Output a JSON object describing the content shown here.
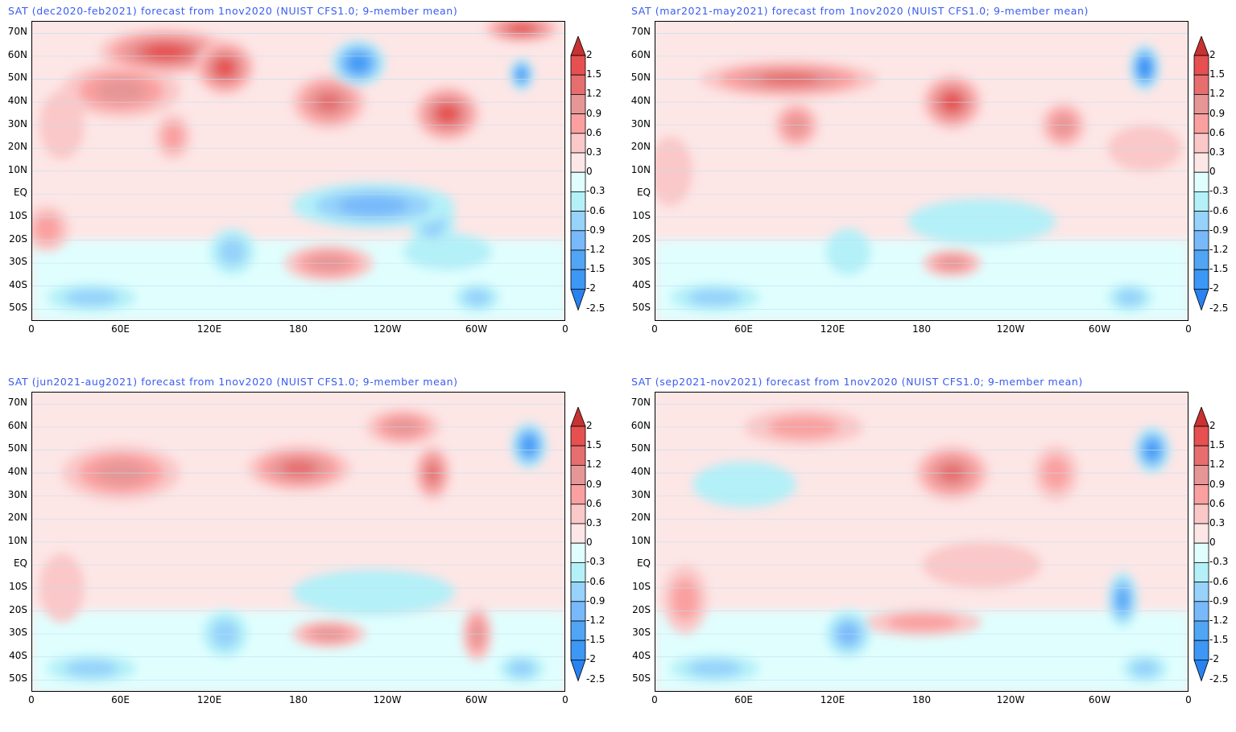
{
  "colorbar": {
    "levels": [
      "2",
      "1.5",
      "1.2",
      "0.9",
      "0.6",
      "0.3",
      "0",
      "-0.3",
      "-0.6",
      "-0.9",
      "-1.2",
      "-1.5",
      "-2",
      "-2.5"
    ],
    "colors": [
      "#c83232",
      "#e65050",
      "#e66e6e",
      "#e69696",
      "#faa0a0",
      "#fac8c8",
      "#fde6e6",
      "#e0fefe",
      "#b4f0f8",
      "#96d2fa",
      "#78b9fa",
      "#50a5f5",
      "#3c97f5",
      "#2882f0"
    ]
  },
  "lat_labels": [
    "70N",
    "60N",
    "50N",
    "40N",
    "30N",
    "20N",
    "10N",
    "EQ",
    "10S",
    "20S",
    "30S",
    "40S",
    "50S"
  ],
  "lon_labels": [
    "0",
    "60E",
    "120E",
    "180",
    "120W",
    "60W",
    "0"
  ],
  "panels": [
    {
      "title": "SAT (dec2020-feb2021) forecast from 1nov2020 (NUIST CFS1.0; 9-member mean)",
      "anomalies": [
        [
          90,
          62,
          45,
          10,
          1.5
        ],
        [
          130,
          55,
          20,
          12,
          1.5
        ],
        [
          60,
          45,
          40,
          12,
          0.9
        ],
        [
          200,
          40,
          25,
          12,
          1.2
        ],
        [
          280,
          35,
          22,
          12,
          1.5
        ],
        [
          330,
          72,
          25,
          6,
          1.5
        ],
        [
          220,
          57,
          18,
          10,
          -1.5
        ],
        [
          330,
          52,
          8,
          7,
          -1.5
        ],
        [
          230,
          -5,
          55,
          10,
          -0.9
        ],
        [
          270,
          -12,
          15,
          12,
          -0.6
        ],
        [
          135,
          -25,
          15,
          10,
          -0.6
        ],
        [
          200,
          -30,
          30,
          8,
          0.9
        ],
        [
          40,
          -45,
          30,
          6,
          -0.6
        ],
        [
          300,
          -45,
          15,
          6,
          -0.6
        ],
        [
          95,
          25,
          12,
          10,
          0.6
        ],
        [
          20,
          30,
          15,
          15,
          0.3
        ],
        [
          10,
          -15,
          15,
          10,
          0.6
        ],
        [
          280,
          -25,
          30,
          8,
          -0.3
        ]
      ]
    },
    {
      "title": "SAT (mar2021-may2021) forecast from 1nov2020 (NUIST CFS1.0; 9-member mean)",
      "anomalies": [
        [
          90,
          50,
          60,
          8,
          1.2
        ],
        [
          200,
          40,
          20,
          12,
          1.5
        ],
        [
          275,
          30,
          15,
          10,
          0.9
        ],
        [
          330,
          55,
          10,
          10,
          -2
        ],
        [
          95,
          30,
          15,
          10,
          0.9
        ],
        [
          220,
          -12,
          50,
          10,
          -0.3
        ],
        [
          200,
          -30,
          20,
          6,
          0.9
        ],
        [
          130,
          -25,
          15,
          10,
          -0.3
        ],
        [
          40,
          -45,
          30,
          6,
          -0.6
        ],
        [
          320,
          -45,
          15,
          6,
          -0.6
        ],
        [
          330,
          20,
          25,
          10,
          0.3
        ],
        [
          10,
          10,
          15,
          15,
          0.3
        ]
      ]
    },
    {
      "title": "SAT (jun2021-aug2021) forecast from 1nov2020 (NUIST CFS1.0; 9-member mean)",
      "anomalies": [
        [
          180,
          42,
          35,
          10,
          1.2
        ],
        [
          270,
          40,
          12,
          12,
          1.2
        ],
        [
          335,
          52,
          12,
          10,
          -1.5
        ],
        [
          60,
          40,
          40,
          12,
          0.9
        ],
        [
          250,
          60,
          25,
          8,
          0.9
        ],
        [
          230,
          -12,
          55,
          10,
          -0.3
        ],
        [
          200,
          -30,
          25,
          6,
          0.9
        ],
        [
          300,
          -30,
          10,
          12,
          0.9
        ],
        [
          130,
          -30,
          15,
          10,
          -0.6
        ],
        [
          40,
          -45,
          30,
          6,
          -0.6
        ],
        [
          330,
          -45,
          15,
          6,
          -0.6
        ],
        [
          20,
          -10,
          15,
          15,
          0.3
        ]
      ]
    },
    {
      "title": "SAT (sep2021-nov2021) forecast from 1nov2020 (NUIST CFS1.0; 9-member mean)",
      "anomalies": [
        [
          200,
          40,
          25,
          12,
          1.2
        ],
        [
          335,
          50,
          12,
          10,
          -1.5
        ],
        [
          315,
          -15,
          10,
          12,
          -1.2
        ],
        [
          130,
          -30,
          15,
          10,
          -0.9
        ],
        [
          60,
          35,
          35,
          10,
          -0.3
        ],
        [
          100,
          60,
          40,
          8,
          0.6
        ],
        [
          270,
          40,
          15,
          12,
          0.6
        ],
        [
          180,
          -25,
          40,
          6,
          0.6
        ],
        [
          40,
          -45,
          30,
          6,
          -0.6
        ],
        [
          330,
          -45,
          15,
          6,
          -0.6
        ],
        [
          20,
          -15,
          15,
          15,
          0.6
        ],
        [
          220,
          0,
          40,
          10,
          0.3
        ]
      ]
    }
  ]
}
